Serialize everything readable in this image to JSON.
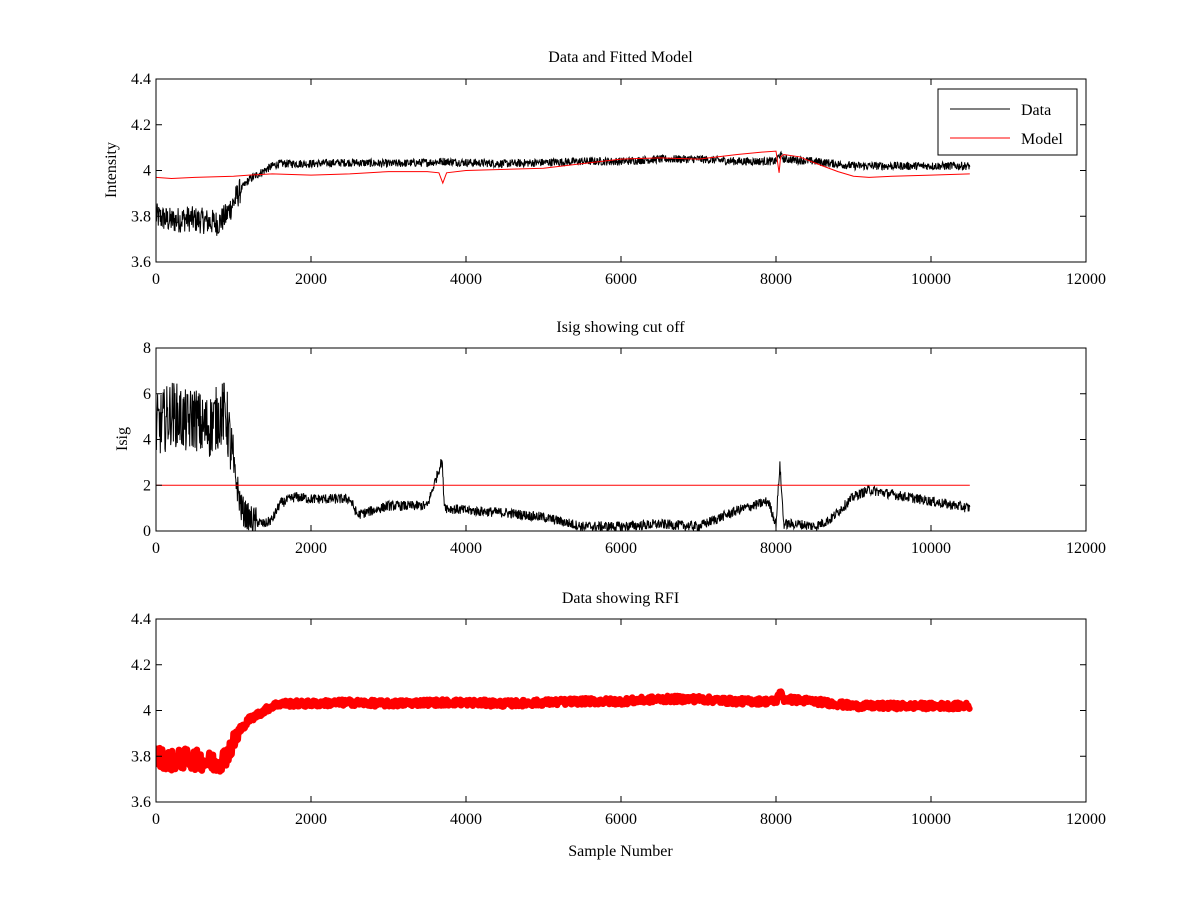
{
  "figure": {
    "background": "#ffffff"
  },
  "chart_data": [
    {
      "id": "p1",
      "type": "line",
      "title": "Data and Fitted Model",
      "xlabel": "",
      "ylabel": "Intensity",
      "xlim": [
        0,
        12000
      ],
      "ylim": [
        3.6,
        4.4
      ],
      "xticks": [
        0,
        2000,
        4000,
        6000,
        8000,
        10000,
        12000
      ],
      "xtick_labels": [
        "0",
        "2000",
        "4000",
        "6000",
        "8000",
        "10000",
        "12000"
      ],
      "yticks": [
        3.6,
        3.8,
        4.0,
        4.2,
        4.4
      ],
      "ytick_labels": [
        "3.6",
        "3.8",
        "4",
        "4.2",
        "4.4"
      ],
      "legend": {
        "location": "top-right",
        "entries": [
          "Data",
          "Model"
        ]
      },
      "series": [
        {
          "name": "Data",
          "color": "#000000",
          "style": "noisy-line",
          "noise": 0.018,
          "x": [
            0,
            200,
            400,
            600,
            800,
            900,
            1000,
            1100,
            1200,
            1300,
            1400,
            1500,
            1600,
            2000,
            2500,
            3000,
            3500,
            3700,
            4000,
            4500,
            5000,
            5500,
            6000,
            6500,
            7000,
            7500,
            8000,
            8050,
            8100,
            8500,
            9000,
            9500,
            10000,
            10500
          ],
          "y": [
            3.8,
            3.78,
            3.79,
            3.78,
            3.77,
            3.8,
            3.86,
            3.92,
            3.96,
            3.98,
            4.0,
            4.02,
            4.03,
            4.03,
            4.035,
            4.03,
            4.035,
            4.04,
            4.035,
            4.03,
            4.035,
            4.04,
            4.04,
            4.05,
            4.05,
            4.04,
            4.04,
            4.07,
            4.05,
            4.04,
            4.02,
            4.02,
            4.02,
            4.02
          ]
        },
        {
          "name": "Model",
          "color": "#ff0000",
          "style": "line",
          "noise": 0,
          "x": [
            0,
            200,
            500,
            1000,
            1200,
            1500,
            2000,
            2500,
            3000,
            3500,
            3650,
            3700,
            3750,
            4000,
            4500,
            5000,
            5500,
            6000,
            6500,
            7000,
            7500,
            7800,
            8000,
            8040,
            8060,
            8100,
            8300,
            8600,
            8800,
            9000,
            9200,
            9500,
            10000,
            10500
          ],
          "y": [
            3.97,
            3.965,
            3.97,
            3.975,
            3.98,
            3.985,
            3.98,
            3.985,
            3.995,
            3.995,
            3.99,
            3.945,
            3.99,
            4.0,
            4.005,
            4.01,
            4.03,
            4.05,
            4.055,
            4.05,
            4.07,
            4.08,
            4.085,
            3.99,
            4.06,
            4.07,
            4.06,
            4.02,
            3.995,
            3.975,
            3.97,
            3.975,
            3.98,
            3.985
          ]
        }
      ]
    },
    {
      "id": "p2",
      "type": "line",
      "title": "Isig showing cut off",
      "xlabel": "",
      "ylabel": "Isig",
      "xlim": [
        0,
        12000
      ],
      "ylim": [
        0,
        8
      ],
      "xticks": [
        0,
        2000,
        4000,
        6000,
        8000,
        10000,
        12000
      ],
      "xtick_labels": [
        "0",
        "2000",
        "4000",
        "6000",
        "8000",
        "10000",
        "12000"
      ],
      "yticks": [
        0,
        2,
        4,
        6,
        8
      ],
      "ytick_labels": [
        "0",
        "2",
        "4",
        "6",
        "8"
      ],
      "series": [
        {
          "name": "Isig",
          "color": "#000000",
          "style": "noisy-line",
          "noise": 0.22,
          "x": [
            0,
            100,
            200,
            300,
            400,
            500,
            600,
            700,
            800,
            900,
            1000,
            1100,
            1200,
            1400,
            1500,
            1600,
            1800,
            2000,
            2500,
            2600,
            2800,
            3000,
            3500,
            3690,
            3720,
            3750,
            4000,
            4500,
            5000,
            5500,
            6000,
            6500,
            7000,
            7500,
            7900,
            8000,
            8050,
            8100,
            8300,
            8500,
            8700,
            9000,
            9200,
            9500,
            10000,
            10500
          ],
          "y": [
            4.5,
            4.8,
            5.2,
            5.0,
            4.7,
            5.0,
            4.5,
            4.6,
            5.0,
            5.2,
            2.8,
            1.0,
            0.5,
            0.3,
            0.5,
            1.2,
            1.5,
            1.4,
            1.4,
            0.7,
            0.9,
            1.1,
            1.1,
            3.1,
            1.2,
            1.0,
            0.9,
            0.8,
            0.6,
            0.2,
            0.2,
            0.3,
            0.2,
            0.9,
            1.3,
            0.3,
            2.9,
            0.3,
            0.3,
            0.2,
            0.5,
            1.5,
            1.8,
            1.6,
            1.3,
            1.0
          ]
        },
        {
          "name": "Cut off",
          "color": "#ff0000",
          "style": "line",
          "noise": 0,
          "x": [
            0,
            10500
          ],
          "y": [
            2,
            2
          ]
        }
      ]
    },
    {
      "id": "p3",
      "type": "line",
      "title": "Data showing RFI",
      "xlabel": "Sample Number",
      "ylabel": "",
      "xlim": [
        0,
        12000
      ],
      "ylim": [
        3.6,
        4.4
      ],
      "xticks": [
        0,
        2000,
        4000,
        6000,
        8000,
        10000,
        12000
      ],
      "xtick_labels": [
        "0",
        "2000",
        "4000",
        "6000",
        "8000",
        "10000",
        "12000"
      ],
      "yticks": [
        3.6,
        3.8,
        4.0,
        4.2,
        4.4
      ],
      "ytick_labels": [
        "3.6",
        "3.8",
        "4",
        "4.2",
        "4.4"
      ],
      "series": [
        {
          "name": "RFI",
          "color": "#ff0000",
          "style": "markers",
          "noise": 0.014,
          "x": [
            0,
            200,
            400,
            600,
            800,
            900,
            1000,
            1100,
            1200,
            1300,
            1400,
            1500,
            1600,
            2000,
            2500,
            3000,
            3500,
            4000,
            4500,
            5000,
            5500,
            6000,
            6500,
            7000,
            7500,
            8000,
            8050,
            8100,
            8500,
            9000,
            9500,
            10000,
            10500
          ],
          "y": [
            3.8,
            3.78,
            3.79,
            3.78,
            3.77,
            3.8,
            3.86,
            3.92,
            3.96,
            3.98,
            4.0,
            4.02,
            4.03,
            4.03,
            4.035,
            4.03,
            4.035,
            4.035,
            4.03,
            4.035,
            4.04,
            4.04,
            4.05,
            4.05,
            4.04,
            4.04,
            4.08,
            4.05,
            4.04,
            4.02,
            4.02,
            4.02,
            4.02
          ]
        }
      ]
    }
  ]
}
